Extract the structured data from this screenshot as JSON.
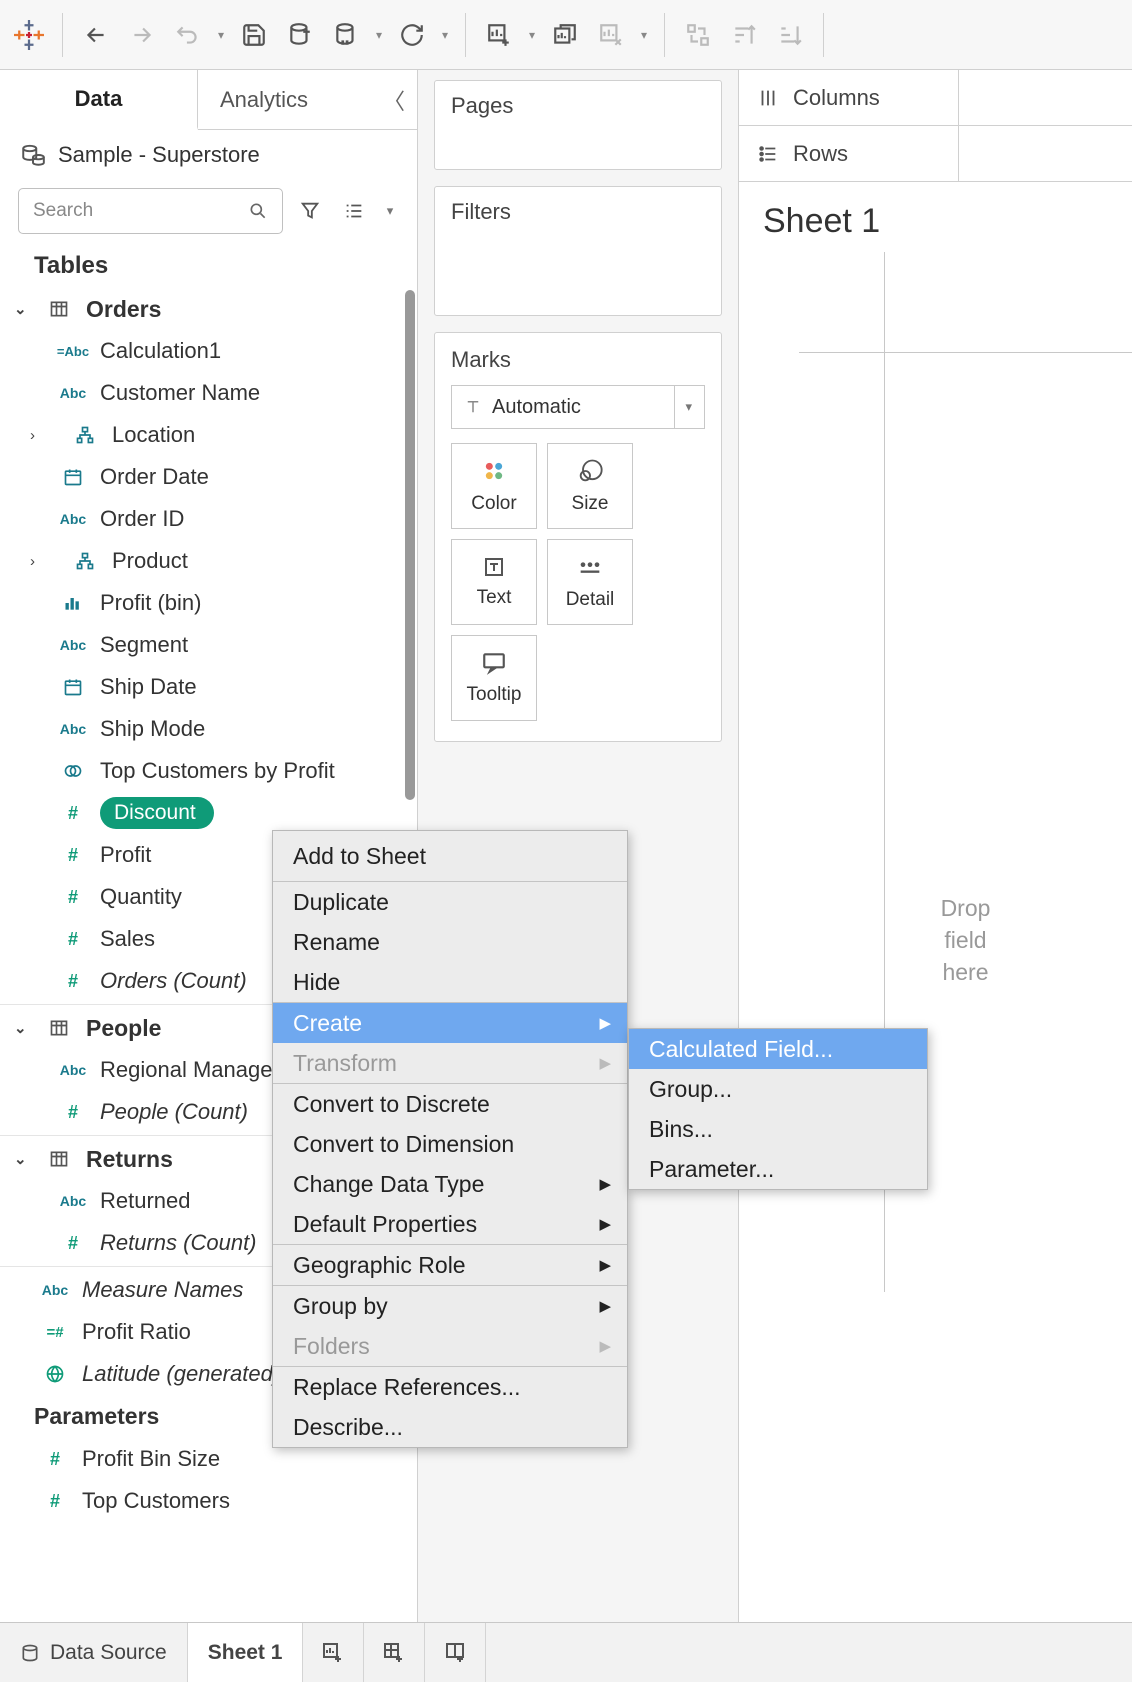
{
  "toolbar": {},
  "pane_tabs": {
    "data": "Data",
    "analytics": "Analytics"
  },
  "datasource": "Sample - Superstore",
  "search_placeholder": "Search",
  "tables_header": "Tables",
  "tree": {
    "orders": {
      "name": "Orders",
      "fields": [
        {
          "icon": "calc-abc",
          "label": "Calculation1"
        },
        {
          "icon": "abc",
          "label": "Customer Name"
        },
        {
          "icon": "hier",
          "label": "Location",
          "expandable": true
        },
        {
          "icon": "date",
          "label": "Order Date"
        },
        {
          "icon": "abc",
          "label": "Order ID"
        },
        {
          "icon": "hier",
          "label": "Product",
          "expandable": true
        },
        {
          "icon": "bin",
          "label": "Profit (bin)"
        },
        {
          "icon": "abc",
          "label": "Segment"
        },
        {
          "icon": "date",
          "label": "Ship Date"
        },
        {
          "icon": "abc",
          "label": "Ship Mode"
        },
        {
          "icon": "set",
          "label": "Top Customers by Profit"
        },
        {
          "icon": "hash-g",
          "label": "Discount",
          "selected": true
        },
        {
          "icon": "hash-g",
          "label": "Profit"
        },
        {
          "icon": "hash-g",
          "label": "Quantity"
        },
        {
          "icon": "hash-g",
          "label": "Sales"
        },
        {
          "icon": "hash-g",
          "label": "Orders (Count)",
          "italic": true
        }
      ]
    },
    "people": {
      "name": "People",
      "fields": [
        {
          "icon": "abc",
          "label": "Regional Manager"
        },
        {
          "icon": "hash-g",
          "label": "People (Count)",
          "italic": true
        }
      ]
    },
    "returns": {
      "name": "Returns",
      "fields": [
        {
          "icon": "abc",
          "label": "Returned"
        },
        {
          "icon": "hash-g",
          "label": "Returns (Count)",
          "italic": true
        }
      ]
    },
    "loose": [
      {
        "icon": "abc",
        "label": "Measure Names",
        "italic": true
      },
      {
        "icon": "calc-hash",
        "label": "Profit Ratio"
      },
      {
        "icon": "globe",
        "label": "Latitude (generated)",
        "italic": true
      }
    ]
  },
  "parameters": {
    "header": "Parameters",
    "items": [
      {
        "icon": "hash-g",
        "label": "Profit Bin Size"
      },
      {
        "icon": "hash-g",
        "label": "Top Customers"
      }
    ]
  },
  "shelves": {
    "pages": "Pages",
    "filters": "Filters",
    "marks": "Marks",
    "marks_dd": "Automatic",
    "mark_btns": {
      "color": "Color",
      "size": "Size",
      "text": "Text",
      "detail": "Detail",
      "tooltip": "Tooltip"
    }
  },
  "rc": {
    "columns": "Columns",
    "rows": "Rows"
  },
  "sheet": {
    "title": "Sheet 1",
    "drop": "Drop\nfield\nhere"
  },
  "ctx": {
    "add_to_sheet": "Add to Sheet",
    "duplicate": "Duplicate",
    "rename": "Rename",
    "hide": "Hide",
    "create": "Create",
    "transform": "Transform",
    "convert_discrete": "Convert to Discrete",
    "convert_dimension": "Convert to Dimension",
    "change_type": "Change Data Type",
    "default_props": "Default Properties",
    "geo_role": "Geographic Role",
    "group_by": "Group by",
    "folders": "Folders",
    "replace_refs": "Replace References...",
    "describe": "Describe..."
  },
  "subctx": {
    "calc_field": "Calculated Field...",
    "group": "Group...",
    "bins": "Bins...",
    "parameter": "Parameter..."
  },
  "bottom": {
    "data_source": "Data Source",
    "sheet1": "Sheet 1"
  },
  "colors": {
    "teal": "#1a7a8c",
    "green": "#0f9b78",
    "highlight": "#6fa8ef"
  }
}
